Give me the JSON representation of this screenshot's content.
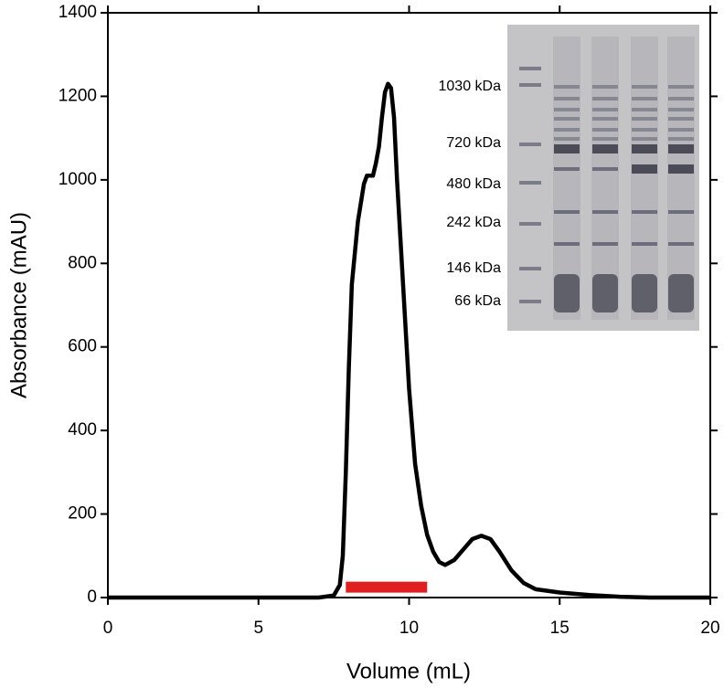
{
  "chart_data": {
    "type": "line",
    "xlabel": "Volume (mL)",
    "ylabel": "Absorbance (mAU)",
    "x": [
      0,
      5,
      7,
      7.5,
      7.7,
      7.8,
      7.9,
      8.0,
      8.1,
      8.3,
      8.5,
      8.6,
      8.8,
      8.9,
      9.0,
      9.1,
      9.2,
      9.3,
      9.4,
      9.5,
      9.6,
      9.8,
      10.0,
      10.2,
      10.4,
      10.6,
      10.8,
      11.0,
      11.2,
      11.5,
      11.8,
      12.1,
      12.4,
      12.7,
      13.0,
      13.4,
      13.8,
      14.2,
      15,
      16,
      17,
      18,
      20
    ],
    "values": [
      0,
      0,
      0,
      5,
      30,
      100,
      300,
      550,
      750,
      900,
      990,
      1010,
      1010,
      1040,
      1080,
      1150,
      1210,
      1230,
      1220,
      1150,
      1000,
      750,
      500,
      320,
      220,
      150,
      110,
      85,
      78,
      90,
      115,
      140,
      148,
      140,
      110,
      65,
      35,
      20,
      12,
      6,
      2,
      0,
      0
    ],
    "color": "#000000",
    "xlim": [
      0,
      20
    ],
    "xticks": [
      0,
      5,
      10,
      15,
      20
    ],
    "ylim": [
      0,
      1400
    ],
    "yticks": [
      0,
      200,
      400,
      600,
      800,
      1000,
      1200,
      1400
    ],
    "highlight": {
      "xrange": [
        7.9,
        10.6
      ],
      "y": 25,
      "color": "#e02020"
    },
    "inset": {
      "labels": [
        "1030 kDa",
        "720 kDa",
        "480 kDa",
        "242 kDa",
        "146 kDa",
        "66 kDa"
      ]
    }
  }
}
